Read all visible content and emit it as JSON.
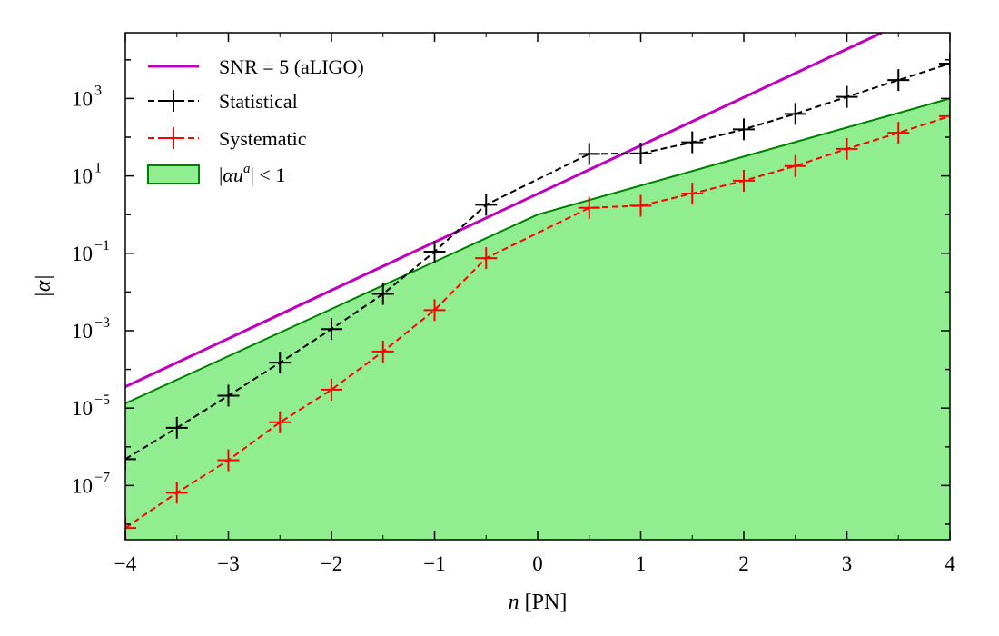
{
  "chart_data": {
    "type": "line",
    "xlabel": "n [PN]",
    "ylabel": "|α|",
    "x_ticks": [
      -4,
      -3,
      -2,
      -1,
      0,
      1,
      2,
      3,
      4
    ],
    "x_tick_labels": [
      "−4",
      "−3",
      "−2",
      "−1",
      "0",
      "1",
      "2",
      "3",
      "4"
    ],
    "xlim": [
      -4,
      4
    ],
    "y_scale": "log",
    "ylim_exponent": [
      -8.4,
      4.7
    ],
    "y_major_tick_exponents": [
      -7,
      -5,
      -3,
      -1,
      1,
      3
    ],
    "y_tick_labels": [
      "10",
      "10",
      "10",
      "10",
      "10",
      "10"
    ],
    "y_tick_exponent_labels": [
      "−7",
      "−5",
      "−3",
      "−1",
      "1",
      "3"
    ],
    "grid": false,
    "legend_position": "upper-left",
    "series": [
      {
        "name": "SNR = 5 (aLIGO)",
        "color": "#bf00bf",
        "style": "solid",
        "x": [
          -4,
          3.34
        ],
        "y": [
          3.55e-05,
          50000
        ]
      },
      {
        "name": "Statistical",
        "color": "#000000",
        "style": "dashed-markers",
        "marker": "plus",
        "x": [
          -4,
          -3.5,
          -3,
          -2.5,
          -2,
          -1.5,
          -1,
          -0.5,
          0.5,
          1,
          1.5,
          2,
          2.5,
          3,
          3.5,
          4
        ],
        "y": [
          4.8e-07,
          3.1e-06,
          2.1e-05,
          0.00015,
          0.0011,
          0.0089,
          0.11,
          1.8,
          37,
          38,
          74,
          160,
          400,
          1100,
          3000,
          8000
        ]
      },
      {
        "name": "Systematic",
        "color": "#ff0000",
        "style": "dashed-markers",
        "marker": "plus",
        "x": [
          -4,
          -3.5,
          -3,
          -2.5,
          -2,
          -1.5,
          -1,
          -0.5,
          0.5,
          1,
          1.5,
          2,
          2.5,
          3,
          3.5,
          4
        ],
        "y": [
          8e-09,
          6.5e-08,
          4.5e-07,
          4.3e-06,
          3e-05,
          0.00029,
          0.0034,
          0.075,
          1.5,
          1.7,
          3.5,
          7.5,
          18,
          50,
          130,
          350
        ]
      }
    ],
    "area": {
      "name": "|αu^a| < 1",
      "fill_color": "#90ee90",
      "edge_color": "#008000",
      "x": [
        -4,
        0,
        4
      ],
      "y": [
        1.32e-05,
        1,
        1000
      ]
    }
  }
}
